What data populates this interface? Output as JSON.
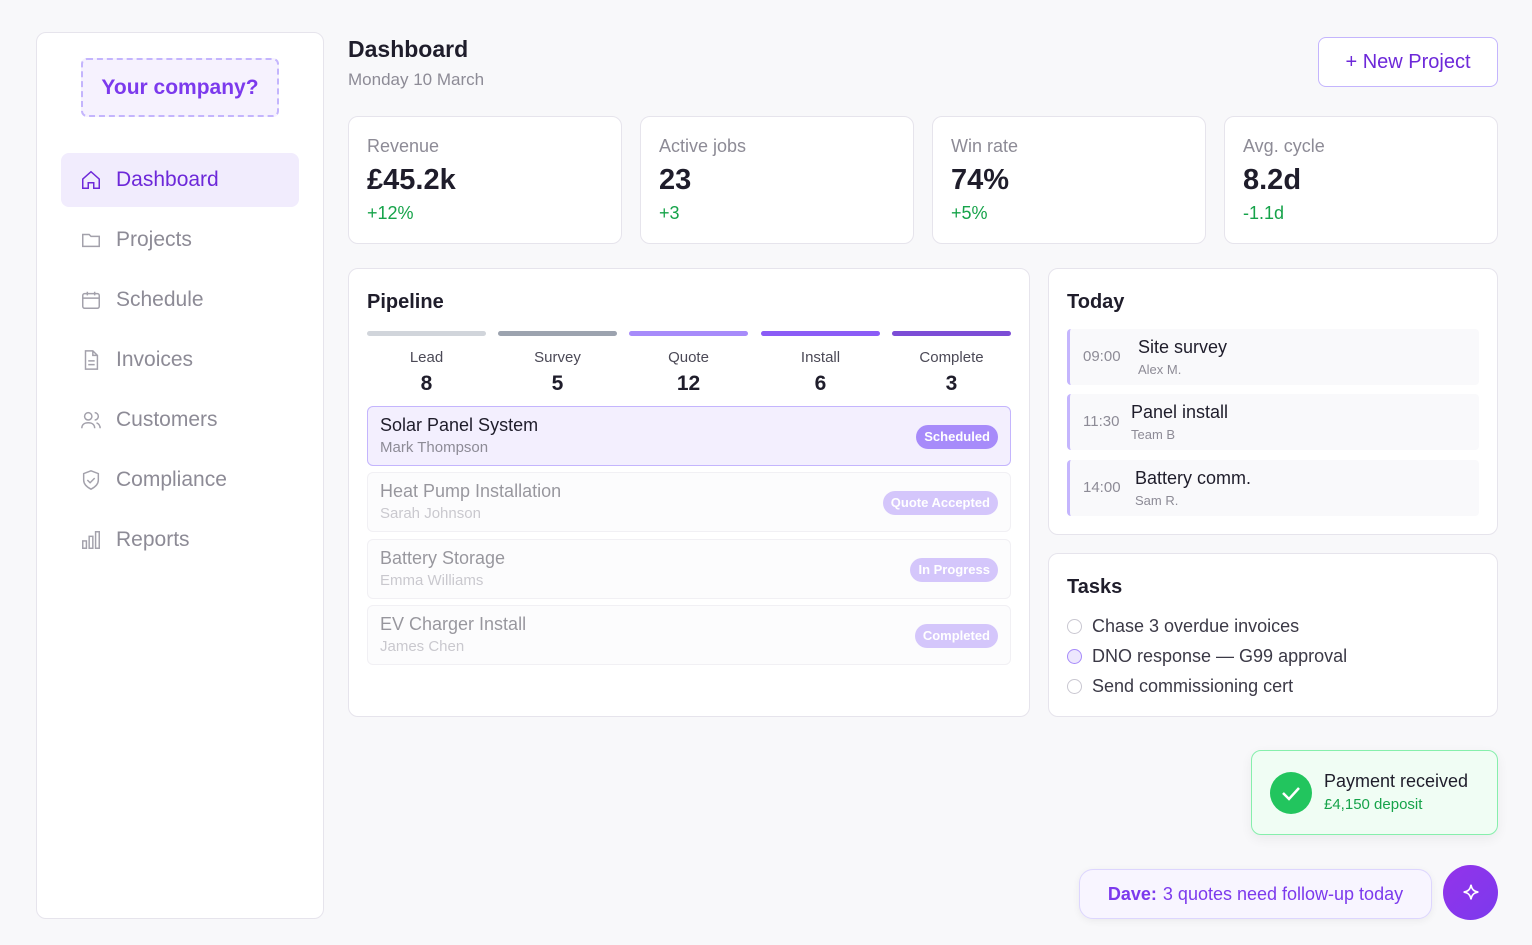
{
  "sidebar": {
    "logo": "Your company?",
    "nav": [
      "Dashboard",
      "Projects",
      "Schedule",
      "Invoices",
      "Customers",
      "Compliance",
      "Reports"
    ]
  },
  "header": {
    "title": "Dashboard",
    "date": "Monday 10 March",
    "button": "+ New Project"
  },
  "kpis": [
    {
      "label": "Revenue",
      "value": "£45.2k",
      "delta": "+12%"
    },
    {
      "label": "Active jobs",
      "value": "23",
      "delta": "+3"
    },
    {
      "label": "Win rate",
      "value": "74%",
      "delta": "+5%"
    },
    {
      "label": "Avg. cycle",
      "value": "8.2d",
      "delta": "-1.1d"
    }
  ],
  "pipeline": {
    "title": "Pipeline",
    "stages": [
      {
        "name": "Lead",
        "count": 8
      },
      {
        "name": "Survey",
        "count": 5
      },
      {
        "name": "Quote",
        "count": 12
      },
      {
        "name": "Install",
        "count": 6
      },
      {
        "name": "Complete",
        "count": 3
      }
    ],
    "projects": [
      {
        "name": "Solar Panel System",
        "customer": "Mark Thompson",
        "status": "Scheduled"
      },
      {
        "name": "Heat Pump Installation",
        "customer": "Sarah Johnson",
        "status": "Quote Accepted"
      },
      {
        "name": "Battery Storage",
        "customer": "Emma Williams",
        "status": "In Progress"
      },
      {
        "name": "EV Charger Install",
        "customer": "James Chen",
        "status": "Completed"
      }
    ]
  },
  "today": {
    "title": "Today",
    "items": [
      {
        "time": "09:00",
        "title": "Site survey",
        "sub": "Alex M."
      },
      {
        "time": "11:30",
        "title": "Panel install",
        "sub": "Team B"
      },
      {
        "time": "14:00",
        "title": "Battery comm.",
        "sub": "Sam R."
      }
    ]
  },
  "tasks": {
    "title": "Tasks",
    "items": [
      "Chase 3 overdue invoices",
      "DNO response — G99 approval",
      "Send commissioning cert"
    ]
  },
  "toast": {
    "title": "Payment received",
    "detail": "£4,150 deposit"
  },
  "assistant": {
    "name": "Dave:",
    "message": "3 quotes need follow-up today"
  }
}
